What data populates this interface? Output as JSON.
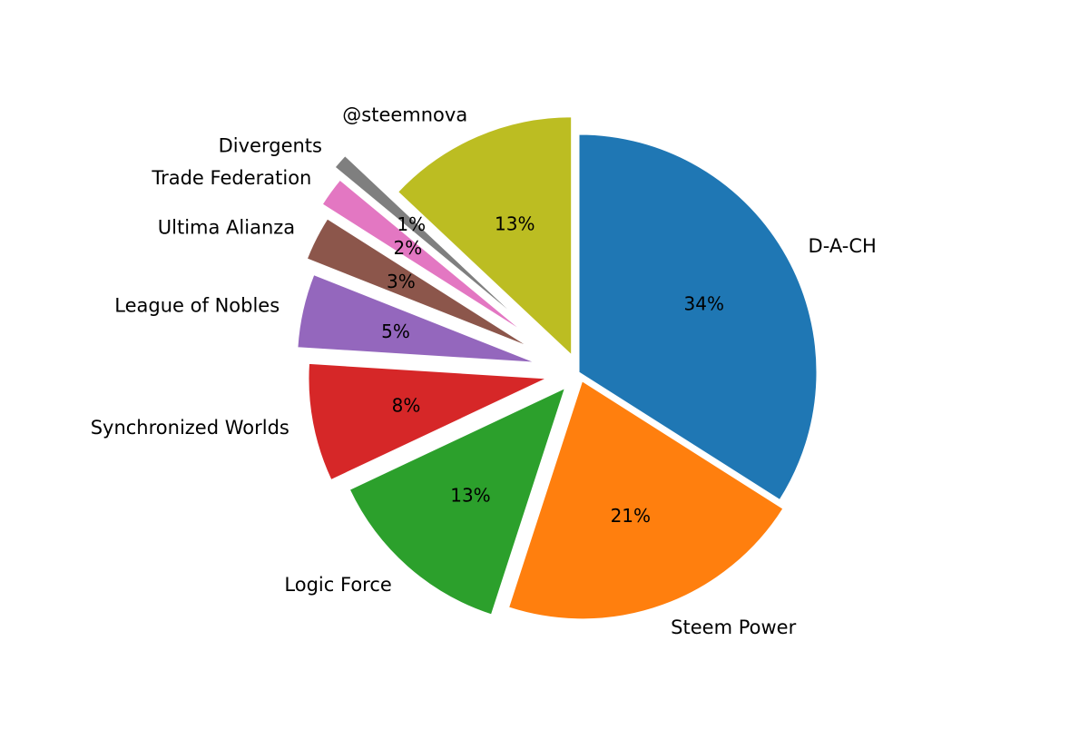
{
  "chart_data": {
    "type": "pie",
    "title": "",
    "slices": [
      {
        "label": "D-A-CH",
        "value": 34,
        "pct_label": "34%",
        "color": "#1f77b4"
      },
      {
        "label": "Steem Power",
        "value": 21,
        "pct_label": "21%",
        "color": "#ff7f0e"
      },
      {
        "label": "Logic Force",
        "value": 13,
        "pct_label": "13%",
        "color": "#2ca02c"
      },
      {
        "label": "Synchronized Worlds",
        "value": 8,
        "pct_label": "8%",
        "color": "#d62728"
      },
      {
        "label": "League of Nobles",
        "value": 5,
        "pct_label": "5%",
        "color": "#9467bd"
      },
      {
        "label": "Ultima Alianza",
        "value": 3,
        "pct_label": "3%",
        "color": "#8c564b"
      },
      {
        "label": "Trade Federation",
        "value": 2,
        "pct_label": "2%",
        "color": "#e377c2"
      },
      {
        "label": "Divergents",
        "value": 1,
        "pct_label": "1%",
        "color": "#7f7f7f"
      },
      {
        "label": "@steemnova",
        "value": 13,
        "pct_label": "13%",
        "color": "#bcbd22"
      }
    ],
    "start_angle": "90 degrees (top), counter-clockwise order reversed (clockwise)",
    "exploded": true
  }
}
